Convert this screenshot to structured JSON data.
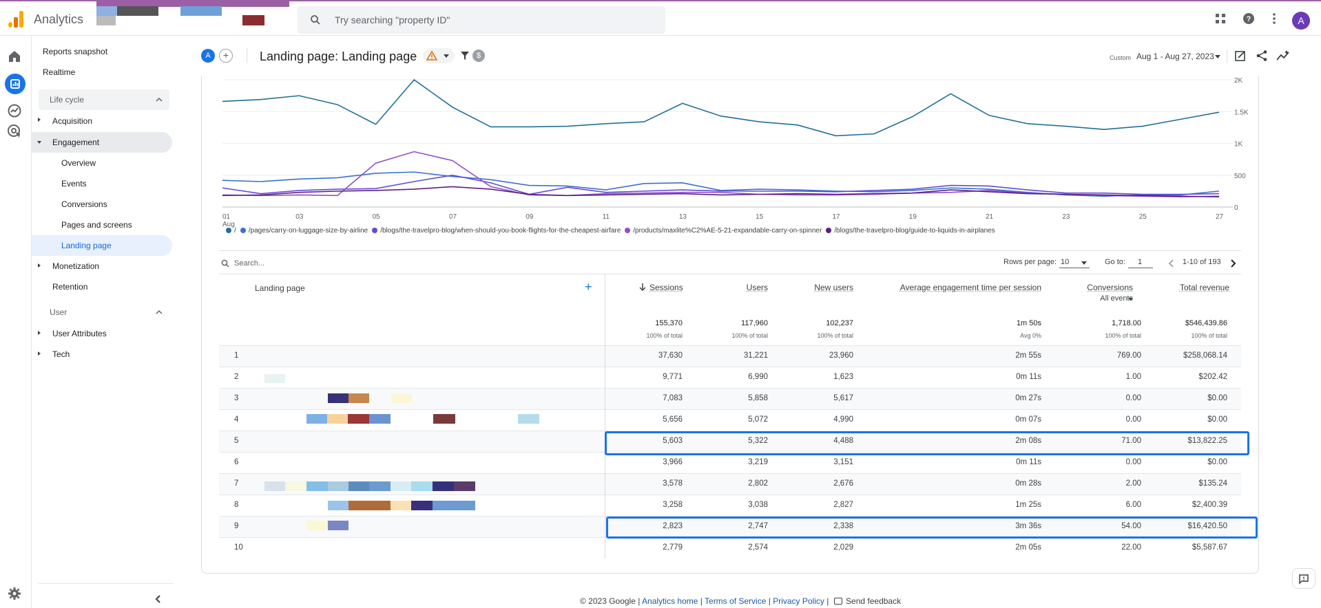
{
  "app": {
    "name": "Analytics",
    "search_placeholder": "Try searching \"property ID\"",
    "avatar_letter": "A",
    "accent_color": "#1a73e8"
  },
  "nav": {
    "reports_snapshot": "Reports snapshot",
    "realtime": "Realtime",
    "life_cycle": "Life cycle",
    "acquisition": "Acquisition",
    "engagement": "Engagement",
    "overview": "Overview",
    "events": "Events",
    "conversions": "Conversions",
    "pages_and_screens": "Pages and screens",
    "landing_page": "Landing page",
    "monetization": "Monetization",
    "retention": "Retention",
    "user": "User",
    "user_attributes": "User Attributes",
    "tech": "Tech"
  },
  "header": {
    "comparison_letter": "A",
    "add_symbol": "+",
    "title": "Landing page: Landing page",
    "date_label": "Custom",
    "date_range": "Aug 1 - Aug 27, 2023"
  },
  "chart_data": {
    "type": "line",
    "x": [
      "01",
      "02",
      "03",
      "04",
      "05",
      "06",
      "07",
      "08",
      "09",
      "10",
      "11",
      "12",
      "13",
      "14",
      "15",
      "16",
      "17",
      "18",
      "19",
      "20",
      "21",
      "22",
      "23",
      "24",
      "25",
      "26",
      "27"
    ],
    "x_tick_labels": [
      "01",
      "03",
      "05",
      "07",
      "09",
      "11",
      "13",
      "15",
      "17",
      "19",
      "21",
      "23",
      "25",
      "27"
    ],
    "x_sub_label": "Aug",
    "y_ticks": [
      "2K",
      "1.5K",
      "1K",
      "500",
      "0"
    ],
    "ylim": [
      0,
      2000
    ],
    "series": [
      {
        "name": "/",
        "color": "#1f6f98",
        "values": [
          1660,
          1690,
          1750,
          1610,
          1300,
          2000,
          1570,
          1260,
          1260,
          1270,
          1310,
          1340,
          1630,
          1430,
          1340,
          1290,
          1120,
          1150,
          1420,
          1780,
          1440,
          1310,
          1270,
          1220,
          1270,
          1380,
          1490
        ]
      },
      {
        "name": "/pages/carry-on-luggage-size-by-airline",
        "color": "#3b6fcf",
        "values": [
          420,
          400,
          440,
          460,
          530,
          550,
          480,
          430,
          340,
          330,
          270,
          370,
          380,
          260,
          280,
          270,
          250,
          240,
          260,
          300,
          280,
          230,
          190,
          170,
          190,
          190,
          250
        ]
      },
      {
        "name": "/blogs/the-travelpro-blog/when-should-you-book-flights-for-the-cheapest-airfare",
        "color": "#5f4bd8",
        "values": [
          300,
          210,
          260,
          280,
          290,
          400,
          500,
          380,
          200,
          310,
          230,
          250,
          270,
          250,
          250,
          250,
          240,
          260,
          280,
          340,
          330,
          270,
          220,
          220,
          200,
          200,
          210
        ]
      },
      {
        "name": "/products/maxlite%C2%AE-5-21-expandable-carry-on-spinner",
        "color": "#8f4ec8",
        "values": [
          190,
          180,
          190,
          180,
          690,
          870,
          730,
          320,
          190,
          180,
          210,
          220,
          230,
          230,
          200,
          190,
          190,
          200,
          220,
          230,
          260,
          220,
          200,
          180,
          170,
          160,
          170
        ]
      },
      {
        "name": "/blogs/the-travelpro-blog/guide-to-liquids-in-airplanes",
        "color": "#5e1d85",
        "values": [
          180,
          190,
          230,
          250,
          260,
          280,
          320,
          280,
          200,
          180,
          190,
          200,
          210,
          190,
          200,
          210,
          200,
          210,
          220,
          270,
          240,
          210,
          200,
          190,
          180,
          170,
          160
        ]
      }
    ]
  },
  "table": {
    "search_placeholder": "Search...",
    "rows_per_page_label": "Rows per page:",
    "rows_per_page": "10",
    "goto_label": "Go to:",
    "goto_value": "1",
    "page_range": "1-10 of 193",
    "columns": {
      "landing_page": "Landing page",
      "sessions": "Sessions",
      "users": "Users",
      "new_users": "New users",
      "avg_engagement": "Average engagement time per session",
      "conversions": "Conversions",
      "conversions_sub": "All events",
      "total_revenue": "Total revenue"
    },
    "totals": {
      "sessions": "155,370",
      "sessions_pct": "100% of total",
      "users": "117,960",
      "users_pct": "100% of total",
      "new_users": "102,237",
      "new_users_pct": "100% of total",
      "avg_engagement": "1m 50s",
      "avg_engagement_pct": "Avg 0%",
      "conversions": "1,718.00",
      "conversions_pct": "100% of total",
      "total_revenue": "$546,439.86",
      "total_revenue_pct": "100% of total"
    },
    "rows": [
      {
        "n": "1",
        "sessions": "37,630",
        "users": "31,221",
        "new_users": "23,960",
        "eng": "2m 55s",
        "conv": "769.00",
        "rev": "$258,068.14"
      },
      {
        "n": "2",
        "sessions": "9,771",
        "users": "6,990",
        "new_users": "1,623",
        "eng": "0m 11s",
        "conv": "1.00",
        "rev": "$202.42"
      },
      {
        "n": "3",
        "sessions": "7,083",
        "users": "5,858",
        "new_users": "5,617",
        "eng": "0m 27s",
        "conv": "0.00",
        "rev": "$0.00"
      },
      {
        "n": "4",
        "sessions": "5,656",
        "users": "5,072",
        "new_users": "4,990",
        "eng": "0m 07s",
        "conv": "0.00",
        "rev": "$0.00"
      },
      {
        "n": "5",
        "sessions": "5,603",
        "users": "5,322",
        "new_users": "4,488",
        "eng": "2m 08s",
        "conv": "71.00",
        "rev": "$13,822.25"
      },
      {
        "n": "6",
        "sessions": "3,966",
        "users": "3,219",
        "new_users": "3,151",
        "eng": "0m 11s",
        "conv": "0.00",
        "rev": "$0.00"
      },
      {
        "n": "7",
        "sessions": "3,578",
        "users": "2,802",
        "new_users": "2,676",
        "eng": "0m 28s",
        "conv": "2.00",
        "rev": "$135.24"
      },
      {
        "n": "8",
        "sessions": "3,258",
        "users": "3,038",
        "new_users": "2,827",
        "eng": "1m 25s",
        "conv": "6.00",
        "rev": "$2,400.39"
      },
      {
        "n": "9",
        "sessions": "2,823",
        "users": "2,747",
        "new_users": "2,338",
        "eng": "3m 36s",
        "conv": "54.00",
        "rev": "$16,420.50"
      },
      {
        "n": "10",
        "sessions": "2,779",
        "users": "2,574",
        "new_users": "2,029",
        "eng": "2m 05s",
        "conv": "22.00",
        "rev": "$5,587.67"
      }
    ]
  },
  "footer": {
    "copyright": "© 2023 Google",
    "analytics_home": "Analytics home",
    "terms": "Terms of Service",
    "privacy": "Privacy Policy",
    "sep": "|",
    "send_feedback": "Send feedback"
  }
}
